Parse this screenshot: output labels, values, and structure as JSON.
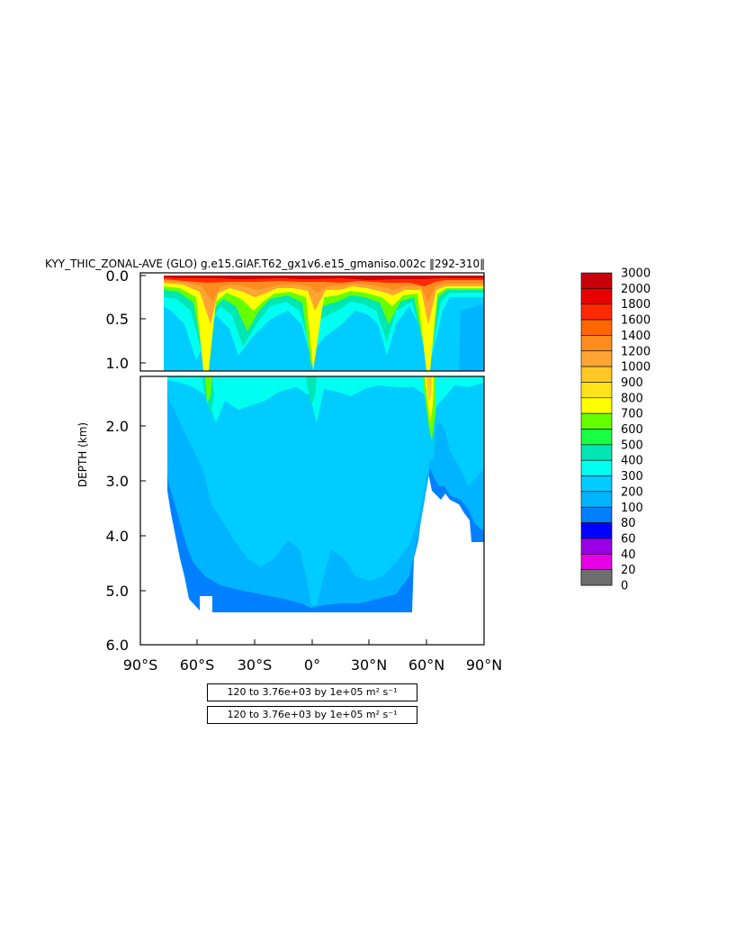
{
  "header": {
    "title": "KYY_THIC_ZONAL-AVE (GLO) g.e15.GIAF.T62_gx1v6.e15_gmaniso.002c ‖292-310‖"
  },
  "chart_data": {
    "type": "contour",
    "ylabel": "DEPTH (km)",
    "xlim": [
      -90,
      90
    ],
    "ylim": [
      6.0,
      0.0
    ],
    "x_ticks": [
      "90°S",
      "60°S",
      "30°S",
      "0°",
      "30°N",
      "60°N",
      "90°N"
    ],
    "y_ticks_top": [
      "0.0",
      "0.5",
      "1.0"
    ],
    "y_ticks_bottom": [
      "2.0",
      "3.0",
      "4.0",
      "5.0",
      "6.0"
    ],
    "colorbar": {
      "levels": [
        "3000",
        "2000",
        "1800",
        "1600",
        "1400",
        "1200",
        "1000",
        "900",
        "800",
        "700",
        "600",
        "500",
        "400",
        "300",
        "200",
        "100",
        "80",
        "60",
        "40",
        "20",
        "0"
      ],
      "colors": [
        "#c8000a",
        "#e80000",
        "#ff2a00",
        "#ff6600",
        "#ff8c1e",
        "#ffa533",
        "#ffc826",
        "#ffe31a",
        "#ffff00",
        "#66ff00",
        "#1aff44",
        "#00e6b4",
        "#00fff0",
        "#00ccff",
        "#00b4ff",
        "#0080ff",
        "#0000ff",
        "#9900e6",
        "#e600e6",
        "#d2d2d2",
        "#6e6e6e"
      ]
    },
    "contour_info": [
      "120 to 3.76e+03 by 1e+05 m² s⁻¹",
      "120 to 3.76e+03 by 1e+05 m² s⁻¹"
    ],
    "grid": false
  }
}
